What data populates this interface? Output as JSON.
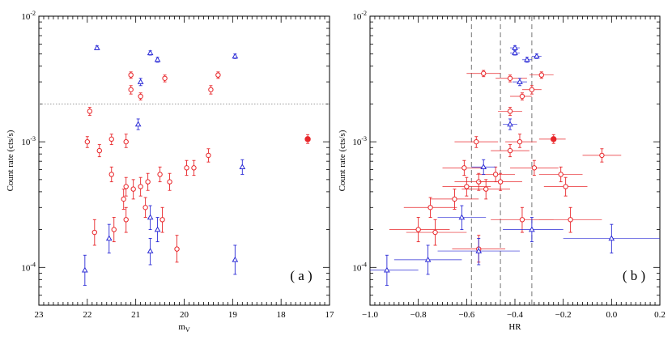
{
  "chart_data": [
    {
      "panel": "a",
      "type": "scatter",
      "panel_label": "( a )",
      "xlabel": "m",
      "xlabel_sub": "V",
      "ylabel": "Count rate (cts/s)",
      "xlim": [
        23,
        17
      ],
      "ylim": [
        5e-05,
        0.01
      ],
      "yscale": "log",
      "x_ticks": [
        "23",
        "22",
        "21",
        "20",
        "19",
        "18",
        "17"
      ],
      "y_ticks": [
        {
          "value": 0.01,
          "base": "10",
          "exp": "-2"
        },
        {
          "value": 0.001,
          "base": "10",
          "exp": "-3"
        },
        {
          "value": 0.0001,
          "base": "10",
          "exp": "-4"
        }
      ],
      "hlines": [
        {
          "y": 0.002,
          "style": "dotted"
        }
      ],
      "series": [
        {
          "marker": "circle",
          "color": "#e8262a",
          "points": [
            {
              "x": 21.95,
              "y": 0.00175,
              "lo": 0.00162,
              "hi": 0.00188
            },
            {
              "x": 21.1,
              "y": 0.0026,
              "lo": 0.0024,
              "hi": 0.0028
            },
            {
              "x": 21.1,
              "y": 0.0034,
              "lo": 0.0032,
              "hi": 0.0036
            },
            {
              "x": 20.9,
              "y": 0.0023,
              "lo": 0.00215,
              "hi": 0.00245
            },
            {
              "x": 20.4,
              "y": 0.0032,
              "lo": 0.003,
              "hi": 0.0034
            },
            {
              "x": 19.45,
              "y": 0.0026,
              "lo": 0.0024,
              "hi": 0.0028
            },
            {
              "x": 19.3,
              "y": 0.0034,
              "lo": 0.0032,
              "hi": 0.0036
            },
            {
              "x": 22.0,
              "y": 0.001,
              "lo": 0.0009,
              "hi": 0.0011
            },
            {
              "x": 21.75,
              "y": 0.00085,
              "lo": 0.00076,
              "hi": 0.00095
            },
            {
              "x": 21.5,
              "y": 0.00105,
              "lo": 0.00095,
              "hi": 0.00115
            },
            {
              "x": 21.2,
              "y": 0.001,
              "lo": 0.0009,
              "hi": 0.00115
            },
            {
              "x": 21.5,
              "y": 0.00055,
              "lo": 0.00048,
              "hi": 0.00063
            },
            {
              "x": 21.2,
              "y": 0.00044,
              "lo": 0.00037,
              "hi": 0.00052
            },
            {
              "x": 21.25,
              "y": 0.00035,
              "lo": 0.00029,
              "hi": 0.00042
            },
            {
              "x": 21.05,
              "y": 0.00042,
              "lo": 0.00035,
              "hi": 0.0005
            },
            {
              "x": 20.9,
              "y": 0.00044,
              "lo": 0.00037,
              "hi": 0.00052
            },
            {
              "x": 20.75,
              "y": 0.00048,
              "lo": 0.00041,
              "hi": 0.00056
            },
            {
              "x": 20.5,
              "y": 0.00055,
              "lo": 0.00048,
              "hi": 0.00063
            },
            {
              "x": 20.3,
              "y": 0.00048,
              "lo": 0.00041,
              "hi": 0.00056
            },
            {
              "x": 19.95,
              "y": 0.00062,
              "lo": 0.00054,
              "hi": 0.00071
            },
            {
              "x": 19.8,
              "y": 0.00062,
              "lo": 0.00054,
              "hi": 0.00071
            },
            {
              "x": 19.5,
              "y": 0.00078,
              "lo": 0.00069,
              "hi": 0.00088
            },
            {
              "x": 21.2,
              "y": 0.00024,
              "lo": 0.00019,
              "hi": 0.0003
            },
            {
              "x": 21.45,
              "y": 0.0002,
              "lo": 0.00016,
              "hi": 0.00025
            },
            {
              "x": 21.85,
              "y": 0.00019,
              "lo": 0.00015,
              "hi": 0.00024
            },
            {
              "x": 20.8,
              "y": 0.0003,
              "lo": 0.00025,
              "hi": 0.00036
            },
            {
              "x": 20.45,
              "y": 0.00024,
              "lo": 0.00019,
              "hi": 0.0003
            },
            {
              "x": 20.15,
              "y": 0.00014,
              "lo": 0.00011,
              "hi": 0.00018
            }
          ]
        },
        {
          "marker": "filled-circle",
          "color": "#e8262a",
          "points": [
            {
              "x": 17.45,
              "y": 0.00105,
              "lo": 0.00097,
              "hi": 0.00114
            }
          ]
        },
        {
          "marker": "triangle",
          "color": "#2b2bd6",
          "points": [
            {
              "x": 21.8,
              "y": 0.0056,
              "lo": 0.0054,
              "hi": 0.0058
            },
            {
              "x": 20.7,
              "y": 0.0051,
              "lo": 0.0049,
              "hi": 0.0053
            },
            {
              "x": 20.55,
              "y": 0.0045,
              "lo": 0.0043,
              "hi": 0.0047
            },
            {
              "x": 18.95,
              "y": 0.0048,
              "lo": 0.0046,
              "hi": 0.005
            },
            {
              "x": 20.9,
              "y": 0.003,
              "lo": 0.0028,
              "hi": 0.0032
            },
            {
              "x": 20.95,
              "y": 0.00138,
              "lo": 0.00125,
              "hi": 0.00152
            },
            {
              "x": 18.8,
              "y": 0.00063,
              "lo": 0.00055,
              "hi": 0.00072
            },
            {
              "x": 20.7,
              "y": 0.00025,
              "lo": 0.0002,
              "hi": 0.00031
            },
            {
              "x": 20.55,
              "y": 0.0002,
              "lo": 0.00016,
              "hi": 0.00025
            },
            {
              "x": 21.55,
              "y": 0.00017,
              "lo": 0.00013,
              "hi": 0.00022
            },
            {
              "x": 20.7,
              "y": 0.000135,
              "lo": 0.000105,
              "hi": 0.00017
            },
            {
              "x": 22.05,
              "y": 9.5e-05,
              "lo": 7.2e-05,
              "hi": 0.000125
            },
            {
              "x": 18.95,
              "y": 0.000115,
              "lo": 8.8e-05,
              "hi": 0.00015
            }
          ]
        }
      ]
    },
    {
      "panel": "b",
      "type": "scatter",
      "panel_label": "( b )",
      "xlabel": "HR",
      "ylabel": "Count rate (cts/s)",
      "xlim": [
        -1.0,
        0.2
      ],
      "ylim": [
        5e-05,
        0.01
      ],
      "yscale": "log",
      "x_ticks": [
        "−1.0",
        "−0.8",
        "−0.6",
        "−0.4",
        "−0.2",
        "0.0",
        "0.2"
      ],
      "y_ticks": [
        {
          "value": 0.01,
          "base": "10",
          "exp": "-2"
        },
        {
          "value": 0.001,
          "base": "10",
          "exp": "-3"
        },
        {
          "value": 0.0001,
          "base": "10",
          "exp": "-4"
        }
      ],
      "vlines": [
        {
          "x": -0.58,
          "style": "dashed"
        },
        {
          "x": -0.46,
          "style": "dashed"
        },
        {
          "x": -0.33,
          "style": "dashed"
        }
      ],
      "series": [
        {
          "marker": "circle",
          "color": "#e8262a",
          "points": [
            {
              "x": -0.53,
              "y": 0.0035,
              "lo": 0.0033,
              "hi": 0.0037,
              "xlo": -0.6,
              "xhi": -0.46
            },
            {
              "x": -0.42,
              "y": 0.0032,
              "lo": 0.003,
              "hi": 0.0034,
              "xlo": -0.48,
              "xhi": -0.35
            },
            {
              "x": -0.29,
              "y": 0.0034,
              "lo": 0.0032,
              "hi": 0.0036,
              "xlo": -0.34,
              "xhi": -0.24
            },
            {
              "x": -0.33,
              "y": 0.0026,
              "lo": 0.0024,
              "hi": 0.0028,
              "xlo": -0.37,
              "xhi": -0.29
            },
            {
              "x": -0.37,
              "y": 0.0023,
              "lo": 0.00215,
              "hi": 0.00245,
              "xlo": -0.42,
              "xhi": -0.33
            },
            {
              "x": -0.42,
              "y": 0.00175,
              "lo": 0.00162,
              "hi": 0.00188,
              "xlo": -0.47,
              "xhi": -0.37
            },
            {
              "x": -0.38,
              "y": 0.001,
              "lo": 0.0009,
              "hi": 0.00115,
              "xlo": -0.44,
              "xhi": -0.31
            },
            {
              "x": -0.56,
              "y": 0.001,
              "lo": 0.0009,
              "hi": 0.0011,
              "xlo": -0.65,
              "xhi": -0.47
            },
            {
              "x": -0.42,
              "y": 0.00085,
              "lo": 0.00076,
              "hi": 0.00095,
              "xlo": -0.5,
              "xhi": -0.34
            },
            {
              "x": -0.04,
              "y": 0.00078,
              "lo": 0.00069,
              "hi": 0.00088,
              "xlo": -0.12,
              "xhi": 0.04
            },
            {
              "x": -0.61,
              "y": 0.00062,
              "lo": 0.00054,
              "hi": 0.00071,
              "xlo": -0.7,
              "xhi": -0.52
            },
            {
              "x": -0.32,
              "y": 0.00062,
              "lo": 0.00054,
              "hi": 0.00071,
              "xlo": -0.42,
              "xhi": -0.22
            },
            {
              "x": -0.21,
              "y": 0.00055,
              "lo": 0.00048,
              "hi": 0.00063,
              "xlo": -0.3,
              "xhi": -0.12
            },
            {
              "x": -0.48,
              "y": 0.00055,
              "lo": 0.00048,
              "hi": 0.00063,
              "xlo": -0.56,
              "xhi": -0.4
            },
            {
              "x": -0.6,
              "y": 0.00044,
              "lo": 0.00037,
              "hi": 0.00052,
              "xlo": -0.7,
              "xhi": -0.5
            },
            {
              "x": -0.55,
              "y": 0.00048,
              "lo": 0.00041,
              "hi": 0.00056,
              "xlo": -0.65,
              "xhi": -0.45
            },
            {
              "x": -0.46,
              "y": 0.00048,
              "lo": 0.00041,
              "hi": 0.00056,
              "xlo": -0.55,
              "xhi": -0.37
            },
            {
              "x": -0.52,
              "y": 0.00042,
              "lo": 0.00035,
              "hi": 0.0005,
              "xlo": -0.62,
              "xhi": -0.42
            },
            {
              "x": -0.19,
              "y": 0.00044,
              "lo": 0.00037,
              "hi": 0.00052,
              "xlo": -0.28,
              "xhi": -0.1
            },
            {
              "x": -0.65,
              "y": 0.00035,
              "lo": 0.00029,
              "hi": 0.00042,
              "xlo": -0.75,
              "xhi": -0.55
            },
            {
              "x": -0.75,
              "y": 0.0003,
              "lo": 0.00025,
              "hi": 0.00036,
              "xlo": -0.86,
              "xhi": -0.64
            },
            {
              "x": -0.37,
              "y": 0.00024,
              "lo": 0.00019,
              "hi": 0.0003,
              "xlo": -0.5,
              "xhi": -0.24
            },
            {
              "x": -0.17,
              "y": 0.00024,
              "lo": 0.00019,
              "hi": 0.0003,
              "xlo": -0.3,
              "xhi": -0.04
            },
            {
              "x": -0.8,
              "y": 0.0002,
              "lo": 0.00016,
              "hi": 0.00025,
              "xlo": -0.92,
              "xhi": -0.67
            },
            {
              "x": -0.73,
              "y": 0.00019,
              "lo": 0.00015,
              "hi": 0.00024,
              "xlo": -0.85,
              "xhi": -0.6
            },
            {
              "x": -0.55,
              "y": 0.00014,
              "lo": 0.00011,
              "hi": 0.00018,
              "xlo": -0.66,
              "xhi": -0.44
            }
          ]
        },
        {
          "marker": "filled-circle",
          "color": "#e8262a",
          "points": [
            {
              "x": -0.24,
              "y": 0.00105,
              "lo": 0.00097,
              "hi": 0.00114,
              "xlo": -0.3,
              "xhi": -0.19
            }
          ]
        },
        {
          "marker": "triangle",
          "color": "#2b2bd6",
          "points": [
            {
              "x": -0.4,
              "y": 0.0056,
              "lo": 0.0054,
              "hi": 0.0058,
              "xlo": -0.42,
              "xhi": -0.38
            },
            {
              "x": -0.4,
              "y": 0.0051,
              "lo": 0.0049,
              "hi": 0.0053,
              "xlo": -0.42,
              "xhi": -0.38
            },
            {
              "x": -0.35,
              "y": 0.0045,
              "lo": 0.0043,
              "hi": 0.0047,
              "xlo": -0.37,
              "xhi": -0.33
            },
            {
              "x": -0.31,
              "y": 0.0048,
              "lo": 0.0046,
              "hi": 0.005,
              "xlo": -0.33,
              "xhi": -0.29
            },
            {
              "x": -0.38,
              "y": 0.003,
              "lo": 0.0028,
              "hi": 0.0032,
              "xlo": -0.41,
              "xhi": -0.35
            },
            {
              "x": -0.42,
              "y": 0.00138,
              "lo": 0.00125,
              "hi": 0.00152,
              "xlo": -0.45,
              "xhi": -0.39
            },
            {
              "x": -0.53,
              "y": 0.00063,
              "lo": 0.00055,
              "hi": 0.00072,
              "xlo": -0.58,
              "xhi": -0.48
            },
            {
              "x": -0.62,
              "y": 0.00025,
              "lo": 0.0002,
              "hi": 0.00031,
              "xlo": -0.72,
              "xhi": -0.52
            },
            {
              "x": -0.33,
              "y": 0.0002,
              "lo": 0.00016,
              "hi": 0.00025,
              "xlo": -0.45,
              "xhi": -0.2
            },
            {
              "x": 0.0,
              "y": 0.00017,
              "lo": 0.00013,
              "hi": 0.00022,
              "xlo": -0.2,
              "xhi": 0.2
            },
            {
              "x": -0.55,
              "y": 0.000135,
              "lo": 0.000105,
              "hi": 0.00017,
              "xlo": -0.72,
              "xhi": -0.38
            },
            {
              "x": -0.93,
              "y": 9.5e-05,
              "lo": 7.2e-05,
              "hi": 0.000125,
              "xlo": -1.0,
              "xhi": -0.8
            },
            {
              "x": -0.76,
              "y": 0.000115,
              "lo": 8.8e-05,
              "hi": 0.00015,
              "xlo": -0.9,
              "xhi": -0.62
            }
          ]
        }
      ]
    }
  ]
}
